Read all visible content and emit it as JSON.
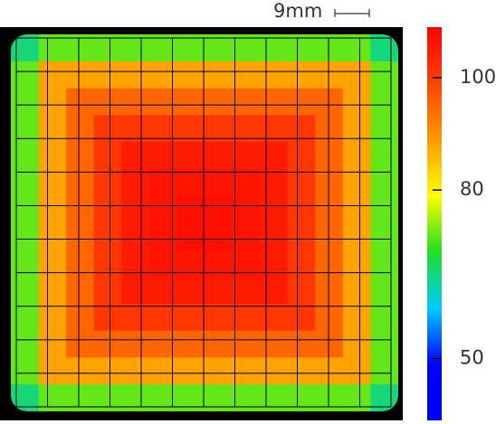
{
  "chart_data": {
    "type": "heatmap",
    "scale_label": "9mm",
    "values": [
      [
        65,
        72,
        72,
        72,
        72,
        72,
        72,
        72,
        72,
        72,
        72,
        72,
        72,
        65
      ],
      [
        72,
        88,
        88,
        88,
        88,
        88,
        88,
        88,
        88,
        88,
        88,
        88,
        88,
        72
      ],
      [
        72,
        88,
        95,
        95,
        95,
        95,
        95,
        95,
        95,
        95,
        95,
        95,
        88,
        72
      ],
      [
        72,
        88,
        95,
        101,
        101,
        101,
        101,
        101,
        101,
        101,
        101,
        95,
        88,
        72
      ],
      [
        72,
        88,
        95,
        101,
        105,
        105,
        105,
        105,
        105,
        105,
        101,
        95,
        88,
        72
      ],
      [
        72,
        88,
        95,
        101,
        105,
        106,
        106,
        106,
        106,
        105,
        101,
        95,
        88,
        72
      ],
      [
        72,
        88,
        95,
        101,
        105,
        106,
        107,
        107,
        106,
        105,
        101,
        95,
        88,
        72
      ],
      [
        72,
        88,
        95,
        101,
        105,
        106,
        107,
        107,
        106,
        105,
        101,
        95,
        88,
        72
      ],
      [
        72,
        88,
        95,
        101,
        105,
        106,
        106,
        106,
        106,
        105,
        101,
        95,
        88,
        72
      ],
      [
        72,
        88,
        95,
        101,
        105,
        105,
        105,
        105,
        105,
        105,
        101,
        95,
        88,
        72
      ],
      [
        72,
        88,
        95,
        101,
        101,
        101,
        101,
        101,
        101,
        101,
        101,
        95,
        88,
        72
      ],
      [
        72,
        88,
        95,
        95,
        95,
        95,
        95,
        95,
        95,
        95,
        95,
        95,
        88,
        72
      ],
      [
        72,
        88,
        88,
        88,
        88,
        88,
        88,
        88,
        88,
        88,
        88,
        88,
        88,
        72
      ],
      [
        65,
        72,
        72,
        72,
        72,
        72,
        72,
        72,
        72,
        72,
        72,
        72,
        72,
        65
      ]
    ],
    "colormap": [
      "#0000ff",
      "#0000ff",
      "#00ccff",
      "#22dd22",
      "#ffff00",
      "#ff9900",
      "#ff4400",
      "#ff0000"
    ],
    "clim": [
      39,
      109
    ],
    "cticks": [
      50,
      80,
      100
    ],
    "grid": true
  }
}
